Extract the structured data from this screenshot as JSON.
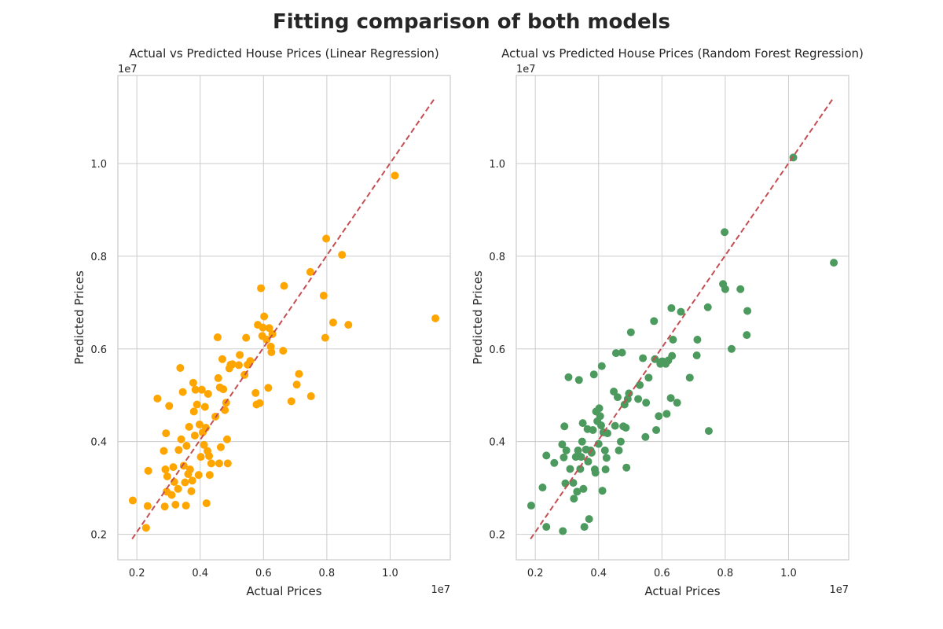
{
  "figure": {
    "title": "Fitting comparison of both models"
  },
  "chart_data": [
    {
      "type": "scatter",
      "title": "Actual vs Predicted House Prices (Linear Regression)",
      "xlabel": "Actual Prices",
      "ylabel": "Predicted Prices",
      "x_offset_label": "1e7",
      "y_offset_label": "1e7",
      "xlim": [
        0.14,
        1.19
      ],
      "ylim": [
        0.145,
        1.19
      ],
      "xticks": [
        0.2,
        0.4,
        0.6,
        0.8,
        1.0
      ],
      "yticks": [
        0.2,
        0.4,
        0.6,
        0.8,
        1.0
      ],
      "xtick_labels": [
        "0.2",
        "0.4",
        "0.6",
        "0.8",
        "1.0"
      ],
      "ytick_labels": [
        "0.2",
        "0.4",
        "0.6",
        "0.8",
        "1.0"
      ],
      "grid": true,
      "point_color": "#FFA500",
      "ref_line": {
        "x": [
          0.185,
          1.14
        ],
        "y": [
          0.19,
          1.14
        ],
        "color": "#C44E52",
        "style": "dashed"
      },
      "points": [
        [
          0.187,
          0.273
        ],
        [
          0.229,
          0.214
        ],
        [
          0.234,
          0.261
        ],
        [
          0.236,
          0.337
        ],
        [
          0.265,
          0.493
        ],
        [
          0.285,
          0.38
        ],
        [
          0.288,
          0.26
        ],
        [
          0.29,
          0.34
        ],
        [
          0.292,
          0.418
        ],
        [
          0.294,
          0.292
        ],
        [
          0.296,
          0.325
        ],
        [
          0.302,
          0.477
        ],
        [
          0.31,
          0.285
        ],
        [
          0.315,
          0.345
        ],
        [
          0.318,
          0.313
        ],
        [
          0.322,
          0.264
        ],
        [
          0.33,
          0.298
        ],
        [
          0.332,
          0.382
        ],
        [
          0.337,
          0.559
        ],
        [
          0.34,
          0.405
        ],
        [
          0.345,
          0.507
        ],
        [
          0.348,
          0.348
        ],
        [
          0.352,
          0.312
        ],
        [
          0.355,
          0.262
        ],
        [
          0.357,
          0.391
        ],
        [
          0.362,
          0.33
        ],
        [
          0.365,
          0.432
        ],
        [
          0.368,
          0.34
        ],
        [
          0.372,
          0.293
        ],
        [
          0.375,
          0.316
        ],
        [
          0.378,
          0.527
        ],
        [
          0.38,
          0.465
        ],
        [
          0.383,
          0.413
        ],
        [
          0.385,
          0.512
        ],
        [
          0.39,
          0.48
        ],
        [
          0.395,
          0.328
        ],
        [
          0.398,
          0.437
        ],
        [
          0.402,
          0.367
        ],
        [
          0.405,
          0.512
        ],
        [
          0.408,
          0.42
        ],
        [
          0.412,
          0.393
        ],
        [
          0.415,
          0.475
        ],
        [
          0.418,
          0.43
        ],
        [
          0.42,
          0.267
        ],
        [
          0.423,
          0.38
        ],
        [
          0.425,
          0.503
        ],
        [
          0.428,
          0.369
        ],
        [
          0.43,
          0.328
        ],
        [
          0.435,
          0.353
        ],
        [
          0.448,
          0.454
        ],
        [
          0.455,
          0.625
        ],
        [
          0.457,
          0.537
        ],
        [
          0.46,
          0.353
        ],
        [
          0.462,
          0.517
        ],
        [
          0.465,
          0.388
        ],
        [
          0.47,
          0.578
        ],
        [
          0.473,
          0.513
        ],
        [
          0.478,
          0.468
        ],
        [
          0.482,
          0.484
        ],
        [
          0.485,
          0.405
        ],
        [
          0.487,
          0.353
        ],
        [
          0.492,
          0.558
        ],
        [
          0.496,
          0.566
        ],
        [
          0.502,
          0.567
        ],
        [
          0.522,
          0.565
        ],
        [
          0.525,
          0.587
        ],
        [
          0.54,
          0.544
        ],
        [
          0.545,
          0.624
        ],
        [
          0.55,
          0.566
        ],
        [
          0.558,
          0.574
        ],
        [
          0.575,
          0.505
        ],
        [
          0.578,
          0.48
        ],
        [
          0.582,
          0.652
        ],
        [
          0.588,
          0.483
        ],
        [
          0.592,
          0.731
        ],
        [
          0.596,
          0.628
        ],
        [
          0.598,
          0.646
        ],
        [
          0.602,
          0.67
        ],
        [
          0.61,
          0.62
        ],
        [
          0.615,
          0.516
        ],
        [
          0.618,
          0.645
        ],
        [
          0.623,
          0.605
        ],
        [
          0.625,
          0.593
        ],
        [
          0.628,
          0.632
        ],
        [
          0.662,
          0.596
        ],
        [
          0.665,
          0.736
        ],
        [
          0.688,
          0.487
        ],
        [
          0.705,
          0.523
        ],
        [
          0.712,
          0.546
        ],
        [
          0.748,
          0.766
        ],
        [
          0.75,
          0.498
        ],
        [
          0.79,
          0.715
        ],
        [
          0.795,
          0.624
        ],
        [
          0.798,
          0.838
        ],
        [
          0.82,
          0.657
        ],
        [
          0.848,
          0.803
        ],
        [
          0.868,
          0.652
        ],
        [
          1.015,
          0.974
        ],
        [
          1.143,
          0.666
        ]
      ]
    },
    {
      "type": "scatter",
      "title": "Actual vs Predicted House Prices (Random Forest Regression)",
      "xlabel": "Actual Prices",
      "ylabel": "Predicted Prices",
      "x_offset_label": "1e7",
      "y_offset_label": "1e7",
      "xlim": [
        0.14,
        1.19
      ],
      "ylim": [
        0.145,
        1.19
      ],
      "xticks": [
        0.2,
        0.4,
        0.6,
        0.8,
        1.0
      ],
      "yticks": [
        0.2,
        0.4,
        0.6,
        0.8,
        1.0
      ],
      "xtick_labels": [
        "0.2",
        "0.4",
        "0.6",
        "0.8",
        "1.0"
      ],
      "ytick_labels": [
        "0.2",
        "0.4",
        "0.6",
        "0.8",
        "1.0"
      ],
      "grid": true,
      "point_color": "#4C9A5E",
      "ref_line": {
        "x": [
          0.185,
          1.14
        ],
        "y": [
          0.19,
          1.14
        ],
        "color": "#C44E52",
        "style": "dashed"
      },
      "points": [
        [
          0.187,
          0.262
        ],
        [
          0.223,
          0.301
        ],
        [
          0.235,
          0.216
        ],
        [
          0.235,
          0.37
        ],
        [
          0.26,
          0.354
        ],
        [
          0.285,
          0.394
        ],
        [
          0.287,
          0.207
        ],
        [
          0.29,
          0.366
        ],
        [
          0.292,
          0.433
        ],
        [
          0.295,
          0.31
        ],
        [
          0.298,
          0.381
        ],
        [
          0.305,
          0.539
        ],
        [
          0.31,
          0.341
        ],
        [
          0.32,
          0.311
        ],
        [
          0.322,
          0.277
        ],
        [
          0.328,
          0.367
        ],
        [
          0.332,
          0.292
        ],
        [
          0.335,
          0.381
        ],
        [
          0.338,
          0.533
        ],
        [
          0.342,
          0.341
        ],
        [
          0.345,
          0.367
        ],
        [
          0.348,
          0.4
        ],
        [
          0.35,
          0.44
        ],
        [
          0.352,
          0.298
        ],
        [
          0.355,
          0.216
        ],
        [
          0.36,
          0.383
        ],
        [
          0.365,
          0.427
        ],
        [
          0.367,
          0.357
        ],
        [
          0.37,
          0.233
        ],
        [
          0.375,
          0.381
        ],
        [
          0.378,
          0.376
        ],
        [
          0.382,
          0.425
        ],
        [
          0.385,
          0.545
        ],
        [
          0.388,
          0.34
        ],
        [
          0.39,
          0.333
        ],
        [
          0.392,
          0.465
        ],
        [
          0.396,
          0.444
        ],
        [
          0.4,
          0.395
        ],
        [
          0.402,
          0.472
        ],
        [
          0.405,
          0.455
        ],
        [
          0.408,
          0.435
        ],
        [
          0.41,
          0.563
        ],
        [
          0.412,
          0.294
        ],
        [
          0.415,
          0.42
        ],
        [
          0.42,
          0.381
        ],
        [
          0.422,
          0.34
        ],
        [
          0.425,
          0.365
        ],
        [
          0.428,
          0.418
        ],
        [
          0.448,
          0.508
        ],
        [
          0.452,
          0.434
        ],
        [
          0.455,
          0.591
        ],
        [
          0.46,
          0.496
        ],
        [
          0.464,
          0.381
        ],
        [
          0.47,
          0.4
        ],
        [
          0.474,
          0.592
        ],
        [
          0.478,
          0.433
        ],
        [
          0.482,
          0.48
        ],
        [
          0.486,
          0.43
        ],
        [
          0.488,
          0.344
        ],
        [
          0.492,
          0.492
        ],
        [
          0.496,
          0.504
        ],
        [
          0.502,
          0.636
        ],
        [
          0.525,
          0.492
        ],
        [
          0.53,
          0.522
        ],
        [
          0.54,
          0.58
        ],
        [
          0.548,
          0.41
        ],
        [
          0.55,
          0.484
        ],
        [
          0.558,
          0.538
        ],
        [
          0.575,
          0.66
        ],
        [
          0.578,
          0.578
        ],
        [
          0.582,
          0.425
        ],
        [
          0.59,
          0.455
        ],
        [
          0.595,
          0.568
        ],
        [
          0.6,
          0.573
        ],
        [
          0.603,
          0.573
        ],
        [
          0.612,
          0.568
        ],
        [
          0.615,
          0.46
        ],
        [
          0.62,
          0.575
        ],
        [
          0.628,
          0.494
        ],
        [
          0.63,
          0.688
        ],
        [
          0.632,
          0.585
        ],
        [
          0.635,
          0.62
        ],
        [
          0.648,
          0.484
        ],
        [
          0.66,
          0.68
        ],
        [
          0.688,
          0.538
        ],
        [
          0.71,
          0.586
        ],
        [
          0.712,
          0.62
        ],
        [
          0.745,
          0.69
        ],
        [
          0.748,
          0.423
        ],
        [
          0.793,
          0.74
        ],
        [
          0.798,
          0.852
        ],
        [
          0.8,
          0.729
        ],
        [
          0.82,
          0.6
        ],
        [
          0.848,
          0.729
        ],
        [
          0.868,
          0.63
        ],
        [
          0.87,
          0.682
        ],
        [
          1.015,
          1.013
        ],
        [
          1.143,
          0.786
        ]
      ]
    }
  ]
}
